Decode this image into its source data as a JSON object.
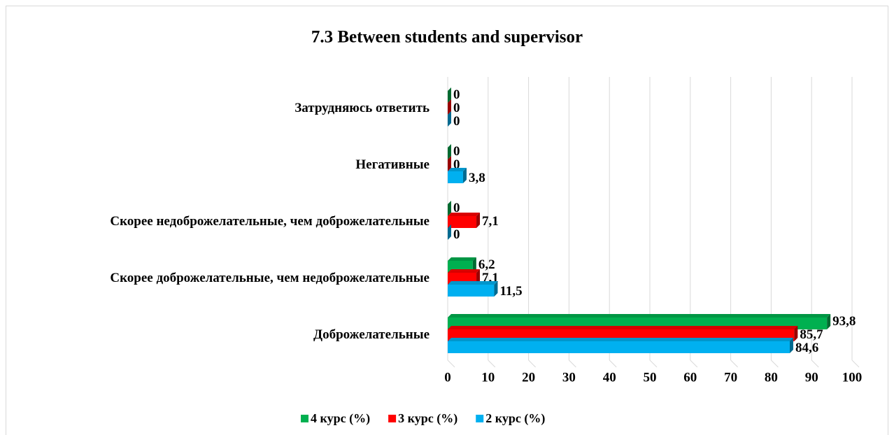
{
  "chart_data": {
    "type": "bar",
    "orientation": "horizontal",
    "title": "7.3 Between students and supervisor",
    "categories": [
      "Затрудняюсь ответить",
      "Негативные",
      "Скорее недоброжелательные, чем доброжелательные",
      "Скорее доброжелательные, чем недоброжелательные",
      "Доброжелательные"
    ],
    "series": [
      {
        "name": "4 курс (%)",
        "color": "#00b050",
        "values": [
          0,
          0,
          0,
          6.2,
          93.8
        ],
        "value_labels": [
          "0",
          "0",
          "0",
          "6,2",
          "93,8"
        ]
      },
      {
        "name": "3 курс (%)",
        "color": "#ff0000",
        "values": [
          0,
          0,
          7.1,
          7.1,
          85.7
        ],
        "value_labels": [
          "0",
          "0",
          "7,1",
          "7,1",
          "85,7"
        ]
      },
      {
        "name": "2 курс (%)",
        "color": "#00b0f0",
        "values": [
          0,
          3.8,
          0,
          11.5,
          84.6
        ],
        "value_labels": [
          "0",
          "3,8",
          "0",
          "11,5",
          "84,6"
        ]
      }
    ],
    "xlim": [
      0,
      100
    ],
    "xticks": [
      0,
      10,
      20,
      30,
      40,
      50,
      60,
      70,
      80,
      90,
      100
    ],
    "grid": true,
    "legend": "bottom"
  }
}
